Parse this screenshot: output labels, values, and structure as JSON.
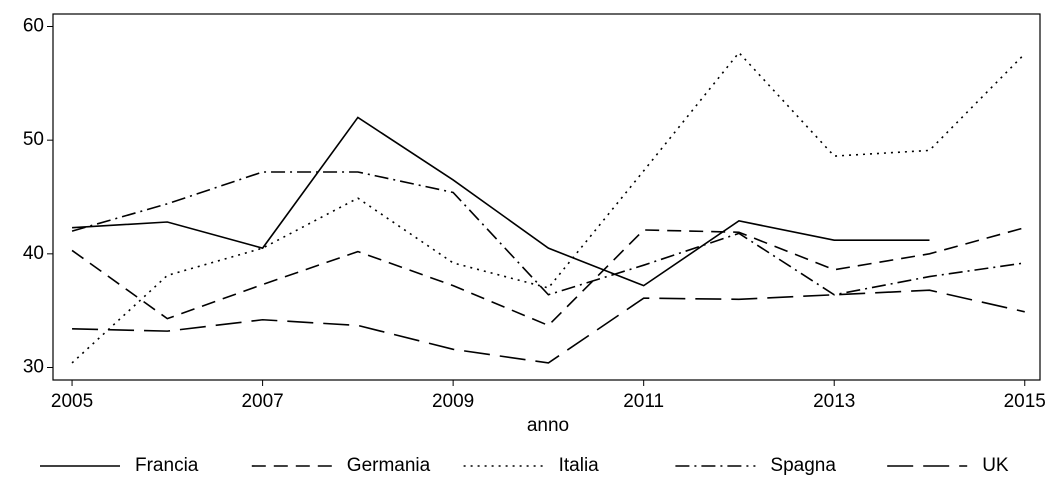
{
  "chart_data": {
    "type": "line",
    "x_label": "anno",
    "x": [
      2005,
      2006,
      2007,
      2008,
      2009,
      2010,
      2011,
      2012,
      2013,
      2014,
      2015
    ],
    "xlim": [
      2004.8,
      2015.16
    ],
    "xticks": [
      2005,
      2007,
      2009,
      2011,
      2013,
      2015
    ],
    "ylim": [
      28.9,
      61.1
    ],
    "yticks": [
      30,
      40,
      50,
      60
    ],
    "grid": false,
    "legend": "bottom",
    "series": [
      {
        "name": "Francia",
        "color": "#000000",
        "dash": "solid",
        "values": [
          42.3,
          42.8,
          40.5,
          52.0,
          46.5,
          40.5,
          37.2,
          42.9,
          41.2,
          41.2,
          null
        ]
      },
      {
        "name": "Germania",
        "color": "#000000",
        "dash": "dash",
        "values": [
          40.3,
          34.3,
          37.3,
          40.2,
          37.2,
          33.7,
          42.1,
          41.9,
          38.6,
          40.0,
          42.3
        ]
      },
      {
        "name": "Italia",
        "color": "#000000",
        "dash": "dot",
        "values": [
          30.4,
          38.1,
          40.5,
          44.9,
          39.2,
          37.0,
          47.3,
          57.7,
          48.6,
          49.1,
          57.6
        ]
      },
      {
        "name": "Spagna",
        "color": "#000000",
        "dash": "dashdot",
        "values": [
          42.0,
          44.4,
          47.2,
          47.2,
          45.4,
          36.4,
          39.0,
          41.8,
          36.4,
          38.0,
          39.2
        ]
      },
      {
        "name": "UK",
        "color": "#000000",
        "dash": "longdash",
        "values": [
          33.4,
          33.2,
          34.2,
          33.7,
          31.6,
          30.4,
          36.1,
          36.0,
          36.4,
          36.8,
          34.9
        ]
      }
    ]
  }
}
